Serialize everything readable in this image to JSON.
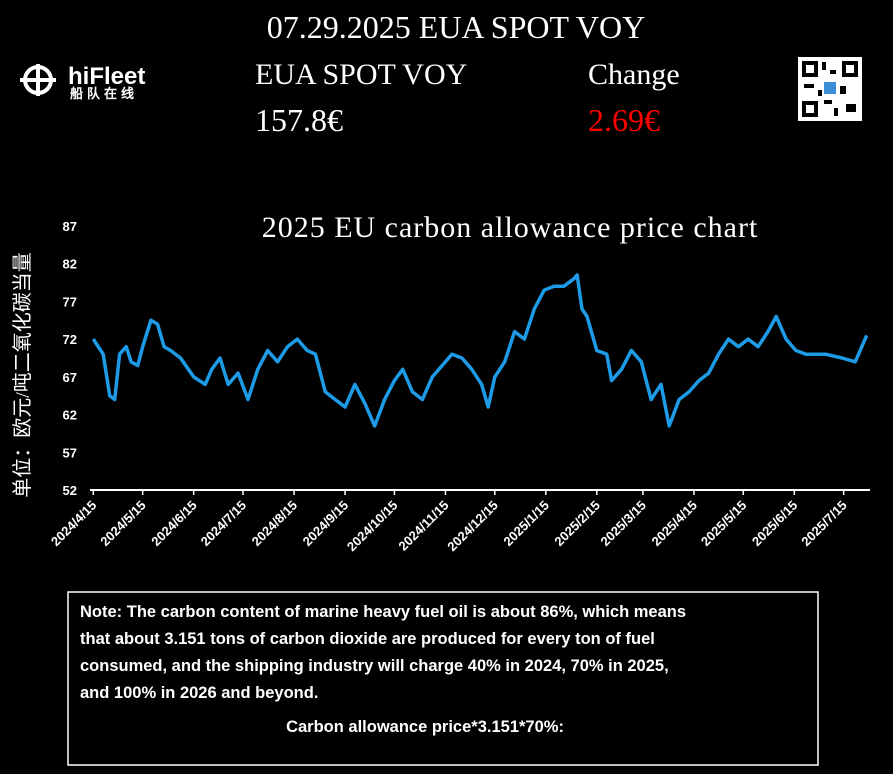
{
  "header": {
    "title": "07.29.2025 EUA SPOT VOY",
    "brand": "hiFleet",
    "brand_sub": "船队在线",
    "price_label": "EUA SPOT VOY",
    "price": "157.8€",
    "change_label": "Change",
    "change": "2.69€",
    "change_color": "#ff0000"
  },
  "chart_data": {
    "type": "line",
    "title": "2025 EU carbon allowance price chart",
    "y_label": "单位：欧元/吨二氧化碳当量",
    "xlim": [
      "2024/4/13",
      "2025/7/31"
    ],
    "xticks": [
      "2024/4/15",
      "2024/5/15",
      "2024/6/15",
      "2024/7/15",
      "2024/8/15",
      "2024/9/15",
      "2024/10/15",
      "2024/11/15",
      "2024/12/15",
      "2025/1/15",
      "2025/2/15",
      "2025/3/15",
      "2025/4/15",
      "2025/5/15",
      "2025/6/15",
      "2025/7/15"
    ],
    "ylim": [
      52,
      87
    ],
    "yticks": [
      52,
      57,
      62,
      67,
      72,
      77,
      82,
      87
    ],
    "grid": false,
    "x": [
      "2024/4/15",
      "2024/4/21",
      "2024/4/25",
      "2024/4/28",
      "2024/5/1",
      "2024/5/5",
      "2024/5/8",
      "2024/5/12",
      "2024/5/15",
      "2024/5/20",
      "2024/5/24",
      "2024/5/28",
      "2024/6/1",
      "2024/6/7",
      "2024/6/15",
      "2024/6/22",
      "2024/6/26",
      "2024/7/1",
      "2024/7/6",
      "2024/7/12",
      "2024/7/18",
      "2024/7/24",
      "2024/7/30",
      "2024/8/5",
      "2024/8/11",
      "2024/8/17",
      "2024/8/23",
      "2024/8/28",
      "2024/9/3",
      "2024/9/9",
      "2024/9/15",
      "2024/9/21",
      "2024/9/27",
      "2024/10/3",
      "2024/10/9",
      "2024/10/15",
      "2024/10/20",
      "2024/10/26",
      "2024/11/1",
      "2024/11/7",
      "2024/11/13",
      "2024/11/19",
      "2024/11/25",
      "2024/12/1",
      "2024/12/7",
      "2024/12/11",
      "2024/12/15",
      "2024/12/21",
      "2024/12/27",
      "2025/1/2",
      "2025/1/8",
      "2025/1/14",
      "2025/1/20",
      "2025/1/26",
      "2025/2/1",
      "2025/2/3",
      "2025/2/6",
      "2025/2/9",
      "2025/2/15",
      "2025/2/21",
      "2025/2/24",
      "2025/3/2",
      "2025/3/8",
      "2025/3/14",
      "2025/3/20",
      "2025/3/26",
      "2025/3/31",
      "2025/4/6",
      "2025/4/12",
      "2025/4/18",
      "2025/4/24",
      "2025/4/30",
      "2025/5/6",
      "2025/5/12",
      "2025/5/18",
      "2025/5/24",
      "2025/5/30",
      "2025/6/4",
      "2025/6/10",
      "2025/6/16",
      "2025/6/22",
      "2025/6/28",
      "2025/7/4",
      "2025/7/14",
      "2025/7/22",
      "2025/7/29"
    ],
    "series": [
      {
        "name": "EUA",
        "color": "#1e9be6",
        "values": [
          72,
          70,
          64.5,
          64,
          70,
          71,
          69,
          68.5,
          71,
          74.5,
          74,
          71,
          70.5,
          69.5,
          67,
          66,
          68,
          69.5,
          66,
          67.5,
          64,
          68,
          70.5,
          69,
          71,
          72,
          70.5,
          70,
          65,
          64,
          63,
          66,
          63.5,
          60.5,
          64,
          66.5,
          68,
          65,
          64,
          67,
          68.5,
          70,
          69.5,
          68,
          66,
          63,
          67,
          69,
          73,
          72,
          76,
          78.5,
          79,
          79,
          80,
          80.5,
          76,
          75,
          70.5,
          70,
          66.5,
          68,
          70.5,
          69,
          64,
          66,
          60.5,
          64,
          65,
          66.5,
          67.5,
          70,
          72,
          71,
          72,
          71,
          73,
          75,
          72,
          70.5,
          70,
          70,
          70,
          69.5,
          69,
          72.5
        ]
      }
    ]
  },
  "note": {
    "lines": [
      "Note: The carbon content of marine heavy fuel oil is about 86%, which means",
      "that about 3.151 tons of carbon dioxide are produced for every ton of fuel",
      "consumed, and the shipping industry will charge 40% in 2024, 70% in 2025,",
      "and 100% in 2026 and beyond."
    ],
    "formula": "Carbon allowance price*3.151*70%:"
  }
}
